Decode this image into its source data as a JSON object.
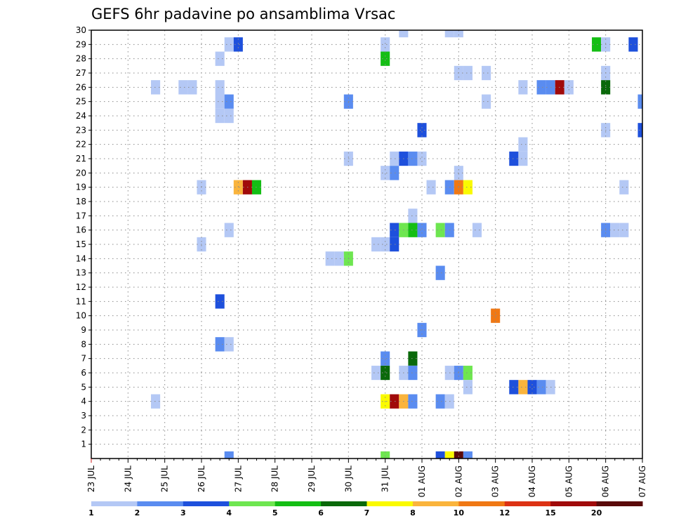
{
  "chart_data": {
    "type": "heatmap",
    "title": "GEFS 6hr padavine po ansamblima Vrsac",
    "xlabel": "",
    "ylabel": "",
    "x_tick_labels": [
      "23 JUL",
      "24 JUL",
      "25 JUL",
      "26 JUL",
      "27 JUL",
      "28 JUL",
      "29 JUL",
      "30 JUL",
      "31 JUL",
      "01 AUG",
      "02 AUG",
      "03 AUG",
      "04 AUG",
      "05 AUG",
      "06 AUG",
      "07 AUG"
    ],
    "y_tick_labels": [
      "1",
      "2",
      "3",
      "4",
      "5",
      "6",
      "7",
      "8",
      "9",
      "10",
      "11",
      "12",
      "13",
      "14",
      "15",
      "16",
      "17",
      "18",
      "19",
      "20",
      "21",
      "22",
      "23",
      "24",
      "25",
      "26",
      "27",
      "28",
      "29",
      "30"
    ],
    "x_unit": "6-hour step from 23 JUL 00Z",
    "xlim": [
      0,
      60
    ],
    "ylim": [
      0,
      30
    ],
    "grid": true,
    "legend": {
      "placement": "bottom",
      "levels": [
        "1",
        "2",
        "3",
        "4",
        "5",
        "6",
        "7",
        "8",
        "10",
        "12",
        "15",
        "20"
      ],
      "colors": [
        "#b4c8f5",
        "#5a8cf0",
        "#1e50dc",
        "#6ee650",
        "#14be14",
        "#0a690a",
        "#fafa00",
        "#fab43c",
        "#f07814",
        "#dc3214",
        "#a00a0a",
        "#5a0a0a"
      ]
    },
    "cells": [
      {
        "x": 34,
        "y": 30,
        "v": 1
      },
      {
        "x": 39,
        "y": 30,
        "v": 1
      },
      {
        "x": 40,
        "y": 30,
        "v": 1
      },
      {
        "x": 15,
        "y": 29,
        "v": 1
      },
      {
        "x": 16,
        "y": 29,
        "v": 3
      },
      {
        "x": 32,
        "y": 29,
        "v": 1
      },
      {
        "x": 55,
        "y": 29,
        "v": 5
      },
      {
        "x": 56,
        "y": 29,
        "v": 1
      },
      {
        "x": 59,
        "y": 29,
        "v": 3
      },
      {
        "x": 14,
        "y": 28,
        "v": 1
      },
      {
        "x": 32,
        "y": 28,
        "v": 5
      },
      {
        "x": 40,
        "y": 27,
        "v": 1
      },
      {
        "x": 41,
        "y": 27,
        "v": 1
      },
      {
        "x": 43,
        "y": 27,
        "v": 1
      },
      {
        "x": 56,
        "y": 27,
        "v": 1
      },
      {
        "x": 7,
        "y": 26,
        "v": 1
      },
      {
        "x": 10,
        "y": 26,
        "v": 1
      },
      {
        "x": 11,
        "y": 26,
        "v": 1
      },
      {
        "x": 14,
        "y": 26,
        "v": 1
      },
      {
        "x": 47,
        "y": 26,
        "v": 1
      },
      {
        "x": 49,
        "y": 26,
        "v": 2
      },
      {
        "x": 50,
        "y": 26,
        "v": 2
      },
      {
        "x": 51,
        "y": 26,
        "v": 15
      },
      {
        "x": 52,
        "y": 26,
        "v": 1
      },
      {
        "x": 56,
        "y": 26,
        "v": 6
      },
      {
        "x": 14,
        "y": 25,
        "v": 1
      },
      {
        "x": 15,
        "y": 25,
        "v": 2
      },
      {
        "x": 28,
        "y": 25,
        "v": 2
      },
      {
        "x": 43,
        "y": 25,
        "v": 1
      },
      {
        "x": 60,
        "y": 25,
        "v": 2
      },
      {
        "x": 14,
        "y": 24,
        "v": 1
      },
      {
        "x": 15,
        "y": 24,
        "v": 1
      },
      {
        "x": 36,
        "y": 23,
        "v": 3
      },
      {
        "x": 56,
        "y": 23,
        "v": 1
      },
      {
        "x": 60,
        "y": 23,
        "v": 3
      },
      {
        "x": 47,
        "y": 22,
        "v": 1
      },
      {
        "x": 28,
        "y": 21,
        "v": 1
      },
      {
        "x": 33,
        "y": 21,
        "v": 1
      },
      {
        "x": 34,
        "y": 21,
        "v": 3
      },
      {
        "x": 35,
        "y": 21,
        "v": 2
      },
      {
        "x": 36,
        "y": 21,
        "v": 1
      },
      {
        "x": 46,
        "y": 21,
        "v": 3
      },
      {
        "x": 47,
        "y": 21,
        "v": 1
      },
      {
        "x": 32,
        "y": 20,
        "v": 1
      },
      {
        "x": 33,
        "y": 20,
        "v": 2
      },
      {
        "x": 40,
        "y": 20,
        "v": 1
      },
      {
        "x": 12,
        "y": 19,
        "v": 1
      },
      {
        "x": 16,
        "y": 19,
        "v": 8
      },
      {
        "x": 17,
        "y": 19,
        "v": 15
      },
      {
        "x": 18,
        "y": 19,
        "v": 5
      },
      {
        "x": 37,
        "y": 19,
        "v": 1
      },
      {
        "x": 39,
        "y": 19,
        "v": 2
      },
      {
        "x": 40,
        "y": 19,
        "v": 10
      },
      {
        "x": 41,
        "y": 19,
        "v": 7
      },
      {
        "x": 58,
        "y": 19,
        "v": 1
      },
      {
        "x": 35,
        "y": 17,
        "v": 1
      },
      {
        "x": 15,
        "y": 16,
        "v": 1
      },
      {
        "x": 33,
        "y": 16,
        "v": 3
      },
      {
        "x": 34,
        "y": 16,
        "v": 4
      },
      {
        "x": 35,
        "y": 16,
        "v": 5
      },
      {
        "x": 36,
        "y": 16,
        "v": 2
      },
      {
        "x": 38,
        "y": 16,
        "v": 4
      },
      {
        "x": 39,
        "y": 16,
        "v": 2
      },
      {
        "x": 42,
        "y": 16,
        "v": 1
      },
      {
        "x": 56,
        "y": 16,
        "v": 2
      },
      {
        "x": 57,
        "y": 16,
        "v": 1
      },
      {
        "x": 58,
        "y": 16,
        "v": 1
      },
      {
        "x": 12,
        "y": 15,
        "v": 1
      },
      {
        "x": 31,
        "y": 15,
        "v": 1
      },
      {
        "x": 32,
        "y": 15,
        "v": 1
      },
      {
        "x": 33,
        "y": 15,
        "v": 3
      },
      {
        "x": 26,
        "y": 14,
        "v": 1
      },
      {
        "x": 27,
        "y": 14,
        "v": 1
      },
      {
        "x": 28,
        "y": 14,
        "v": 4
      },
      {
        "x": 38,
        "y": 13,
        "v": 2
      },
      {
        "x": 14,
        "y": 11,
        "v": 3
      },
      {
        "x": 44,
        "y": 10,
        "v": 10
      },
      {
        "x": 36,
        "y": 9,
        "v": 2
      },
      {
        "x": 14,
        "y": 8,
        "v": 2
      },
      {
        "x": 15,
        "y": 8,
        "v": 1
      },
      {
        "x": 32,
        "y": 7,
        "v": 2
      },
      {
        "x": 35,
        "y": 7,
        "v": 6
      },
      {
        "x": 31,
        "y": 6,
        "v": 1
      },
      {
        "x": 32,
        "y": 6,
        "v": 6
      },
      {
        "x": 34,
        "y": 6,
        "v": 1
      },
      {
        "x": 35,
        "y": 6,
        "v": 2
      },
      {
        "x": 39,
        "y": 6,
        "v": 1
      },
      {
        "x": 40,
        "y": 6,
        "v": 2
      },
      {
        "x": 41,
        "y": 6,
        "v": 4
      },
      {
        "x": 41,
        "y": 5,
        "v": 1
      },
      {
        "x": 46,
        "y": 5,
        "v": 3
      },
      {
        "x": 47,
        "y": 5,
        "v": 8
      },
      {
        "x": 48,
        "y": 5,
        "v": 3
      },
      {
        "x": 49,
        "y": 5,
        "v": 2
      },
      {
        "x": 50,
        "y": 5,
        "v": 1
      },
      {
        "x": 7,
        "y": 4,
        "v": 1
      },
      {
        "x": 32,
        "y": 4,
        "v": 7
      },
      {
        "x": 33,
        "y": 4,
        "v": 15
      },
      {
        "x": 34,
        "y": 4,
        "v": 8
      },
      {
        "x": 35,
        "y": 4,
        "v": 2
      },
      {
        "x": 38,
        "y": 4,
        "v": 2
      },
      {
        "x": 39,
        "y": 4,
        "v": 1
      },
      {
        "x": 15,
        "y": 0,
        "v": 2
      },
      {
        "x": 32,
        "y": 0,
        "v": 4
      },
      {
        "x": 38,
        "y": 0,
        "v": 3
      },
      {
        "x": 39,
        "y": 0,
        "v": 7
      },
      {
        "x": 40,
        "y": 0,
        "v": 20
      },
      {
        "x": 41,
        "y": 0,
        "v": 2
      }
    ]
  }
}
